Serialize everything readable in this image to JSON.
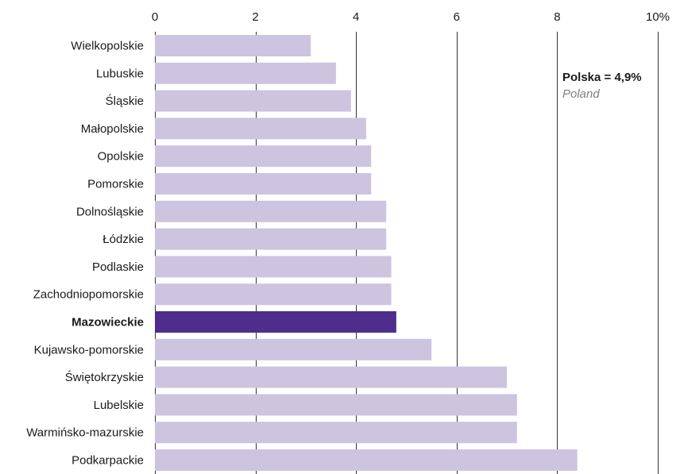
{
  "chart_data": {
    "type": "bar",
    "orientation": "horizontal",
    "categories": [
      "Wielkopolskie",
      "Lubuskie",
      "Śląskie",
      "Małopolskie",
      "Opolskie",
      "Pomorskie",
      "Dolnośląskie",
      "Łódzkie",
      "Podlaskie",
      "Zachodniopomorskie",
      "Mazowieckie",
      "Kujawsko-pomorskie",
      "Świętokrzyskie",
      "Lubelskie",
      "Warmińsko-mazurskie",
      "Podkarpackie"
    ],
    "values": [
      3.1,
      3.6,
      3.9,
      4.2,
      4.3,
      4.3,
      4.6,
      4.6,
      4.7,
      4.7,
      4.8,
      5.5,
      7.0,
      7.2,
      7.2,
      8.4
    ],
    "highlight": "Mazowieckie",
    "xlim": [
      0,
      10
    ],
    "xticks": [
      "0",
      "2",
      "4",
      "6",
      "8",
      "10%"
    ],
    "xtick_values": [
      0,
      2,
      4,
      6,
      8,
      10
    ],
    "axis_position": "top",
    "grid": true,
    "colors": {
      "bar": "#cdc4e0",
      "highlight": "#4e2d8c",
      "grid": "#333333"
    },
    "annotation": {
      "main": "Polska = 4,9%",
      "sub": "Poland",
      "placement": "top-right"
    }
  }
}
